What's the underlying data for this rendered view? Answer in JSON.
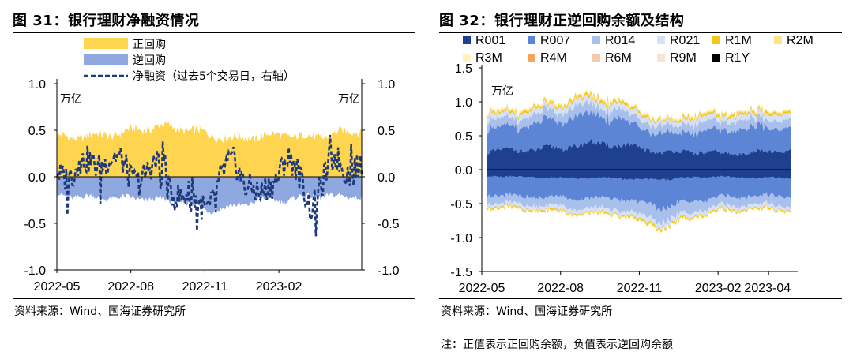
{
  "left": {
    "title": "图 31：银行理财净融资情况",
    "source": "资料来源：Wind、国海证券研究所"
  },
  "right": {
    "title": "图 32：银行理财正逆回购余额及结构",
    "source": "资料来源：Wind、国海证券研究所",
    "note": "注：正值表示正回购余额，负值表示逆回购余额"
  },
  "chart_data": [
    {
      "type": "area",
      "title": "图 31：银行理财净融资情况",
      "left_unit": "万亿",
      "right_unit": "万亿",
      "ylim": [
        -1.0,
        1.0
      ],
      "yticks": [
        "1.0",
        "0.5",
        "0.0",
        "-0.5",
        "-1.0"
      ],
      "yticks_right": [
        "1.0",
        "0.5",
        "0.0",
        "-0.5",
        "-1.0"
      ],
      "x_tick_labels": [
        "2022-05",
        "2022-08",
        "2022-11",
        "2023-02"
      ],
      "x_range": [
        "2022-05-01",
        "2023-05-15"
      ],
      "legend_placement": "top-left",
      "colors": {
        "positive": "#FFD54F",
        "negative": "#8FA8E0",
        "net": "#1F3A7A"
      },
      "series": [
        {
          "name": "正回购",
          "axis": "left",
          "style": "area",
          "x": [
            "2022-05",
            "2022-06",
            "2022-07",
            "2022-08",
            "2022-09",
            "2022-10",
            "2022-11",
            "2022-12",
            "2023-01",
            "2023-02",
            "2023-03",
            "2023-04",
            "2023-05"
          ],
          "values": [
            0.4,
            0.43,
            0.47,
            0.52,
            0.55,
            0.5,
            0.43,
            0.4,
            0.45,
            0.48,
            0.43,
            0.45,
            0.48
          ]
        },
        {
          "name": "逆回购",
          "axis": "left",
          "style": "area",
          "x": [
            "2022-05",
            "2022-06",
            "2022-07",
            "2022-08",
            "2022-09",
            "2022-10",
            "2022-11",
            "2022-12",
            "2023-01",
            "2023-02",
            "2023-03",
            "2023-04",
            "2023-05"
          ],
          "values": [
            -0.18,
            -0.2,
            -0.22,
            -0.24,
            -0.26,
            -0.28,
            -0.35,
            -0.3,
            -0.24,
            -0.26,
            -0.22,
            -0.22,
            -0.2
          ]
        },
        {
          "name": "净融资（过去5个交易日，右轴）",
          "axis": "right",
          "style": "dashed-line",
          "x": [
            "2022-05",
            "2022-06",
            "2022-07",
            "2022-08",
            "2022-09",
            "2022-10",
            "2022-11",
            "2022-12",
            "2023-01",
            "2023-02",
            "2023-03",
            "2023-04",
            "2023-05"
          ],
          "values": [
            0.12,
            0.05,
            0.25,
            -0.05,
            0.2,
            -0.3,
            -0.4,
            0.25,
            -0.6,
            0.3,
            -0.4,
            0.4,
            0.2
          ]
        }
      ]
    },
    {
      "type": "area",
      "title": "图 32：银行理财正逆回购余额及结构",
      "ylabel": "万亿",
      "ylim": [
        -1.5,
        1.5
      ],
      "yticks": [
        "1.5",
        "1.0",
        "0.5",
        "0.0",
        "-0.5",
        "-1.0",
        "-1.5"
      ],
      "x_tick_labels": [
        "2022-05",
        "2022-08",
        "2022-11",
        "2023-02",
        "2023-04"
      ],
      "x_range": [
        "2022-05-01",
        "2023-05-05"
      ],
      "legend_placement": "top",
      "x": [
        "2022-05",
        "2022-06",
        "2022-07",
        "2022-08",
        "2022-09",
        "2022-10",
        "2022-11",
        "2022-12",
        "2023-01",
        "2023-02",
        "2023-03",
        "2023-04",
        "2023-05"
      ],
      "series": [
        {
          "name": "R001",
          "color": "#1F3F8F",
          "positive": [
            0.28,
            0.3,
            0.32,
            0.34,
            0.38,
            0.35,
            0.3,
            0.25,
            0.28,
            0.26,
            0.25,
            0.27,
            0.26
          ],
          "negative": [
            -0.1,
            -0.1,
            -0.11,
            -0.12,
            -0.12,
            -0.13,
            -0.15,
            -0.15,
            -0.12,
            -0.1,
            -0.11,
            -0.12,
            -0.12
          ]
        },
        {
          "name": "R007",
          "color": "#5C85D6",
          "positive": [
            0.35,
            0.36,
            0.36,
            0.38,
            0.4,
            0.4,
            0.32,
            0.28,
            0.3,
            0.32,
            0.35,
            0.34,
            0.33
          ],
          "negative": [
            -0.25,
            -0.27,
            -0.28,
            -0.3,
            -0.32,
            -0.3,
            -0.35,
            -0.4,
            -0.33,
            -0.3,
            -0.28,
            -0.28,
            -0.27
          ]
        },
        {
          "name": "R014",
          "color": "#A9BFEC",
          "positive": [
            0.12,
            0.12,
            0.13,
            0.14,
            0.15,
            0.14,
            0.12,
            0.1,
            0.12,
            0.12,
            0.13,
            0.13,
            0.12
          ],
          "negative": [
            -0.12,
            -0.12,
            -0.13,
            -0.14,
            -0.14,
            -0.15,
            -0.17,
            -0.2,
            -0.16,
            -0.14,
            -0.13,
            -0.13,
            -0.13
          ]
        },
        {
          "name": "R021",
          "color": "#D7E1F5",
          "positive": [
            0.08,
            0.08,
            0.08,
            0.09,
            0.09,
            0.09,
            0.08,
            0.06,
            0.08,
            0.08,
            0.08,
            0.08,
            0.08
          ],
          "negative": [
            -0.05,
            -0.05,
            -0.05,
            -0.06,
            -0.06,
            -0.06,
            -0.07,
            -0.08,
            -0.06,
            -0.06,
            -0.05,
            -0.05,
            -0.05
          ]
        },
        {
          "name": "R1M",
          "color": "#F5C518",
          "positive": [
            0.03,
            0.03,
            0.03,
            0.03,
            0.04,
            0.03,
            0.03,
            0.02,
            0.03,
            0.03,
            0.03,
            0.03,
            0.03
          ],
          "negative": [
            -0.02,
            -0.02,
            -0.02,
            -0.02,
            -0.02,
            -0.02,
            -0.03,
            -0.03,
            -0.02,
            -0.02,
            -0.02,
            -0.02,
            -0.02
          ]
        },
        {
          "name": "R2M",
          "color": "#FFE58A",
          "positive": [
            0.02,
            0.02,
            0.02,
            0.02,
            0.02,
            0.02,
            0.02,
            0.02,
            0.02,
            0.02,
            0.02,
            0.02,
            0.02
          ],
          "negative": [
            -0.01,
            -0.01,
            -0.01,
            -0.01,
            -0.01,
            -0.01,
            -0.01,
            -0.01,
            -0.01,
            -0.01,
            -0.01,
            -0.01,
            -0.01
          ]
        },
        {
          "name": "R3M",
          "color": "#FFF3C4",
          "positive": [
            0.01,
            0.01,
            0.01,
            0.01,
            0.01,
            0.01,
            0.01,
            0.01,
            0.01,
            0.01,
            0.01,
            0.01,
            0.01
          ],
          "negative": [
            0,
            0,
            0,
            0,
            0,
            0,
            0,
            0,
            0,
            0,
            0,
            0,
            0
          ]
        },
        {
          "name": "R4M",
          "color": "#F4A460",
          "positive": [
            0,
            0,
            0,
            0,
            0,
            0,
            0,
            0,
            0,
            0,
            0,
            0,
            0
          ],
          "negative": [
            0,
            0,
            0,
            0,
            0,
            0,
            0,
            0,
            0,
            0,
            0,
            0,
            0
          ]
        },
        {
          "name": "R6M",
          "color": "#F6C9A8",
          "positive": [
            0,
            0,
            0,
            0,
            0,
            0,
            0,
            0,
            0,
            0,
            0,
            0,
            0
          ],
          "negative": [
            0,
            0,
            0,
            0,
            0,
            0,
            0,
            0,
            0,
            0,
            0,
            0,
            0
          ]
        },
        {
          "name": "R9M",
          "color": "#FBE3D3",
          "positive": [
            0,
            0,
            0,
            0,
            0,
            0,
            0,
            0,
            0,
            0,
            0,
            0,
            0
          ],
          "negative": [
            0,
            0,
            0,
            0,
            0,
            0,
            0,
            0,
            0,
            0,
            0,
            0,
            0
          ]
        },
        {
          "name": "R1Y",
          "color": "#000000",
          "positive": [
            0,
            0,
            0,
            0,
            0,
            0,
            0,
            0,
            0,
            0,
            0,
            0,
            0
          ],
          "negative": [
            0,
            0,
            0,
            0,
            0,
            0,
            0,
            0,
            0,
            0,
            0,
            0,
            0
          ]
        }
      ]
    }
  ]
}
